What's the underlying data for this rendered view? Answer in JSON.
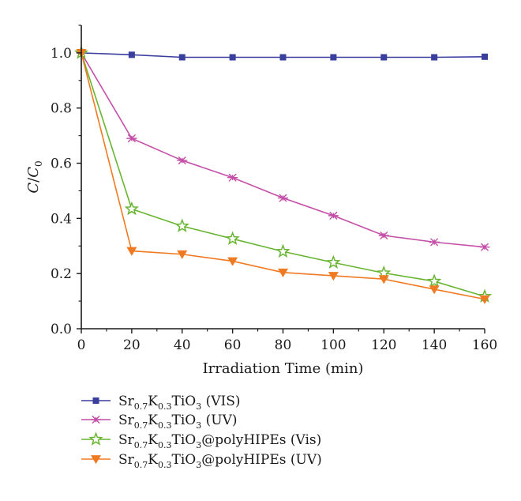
{
  "chart_data": {
    "type": "line",
    "xlabel": "Irradiation Time (min)",
    "ylabel": {
      "base": "C",
      "slash": "/",
      "base2": "C",
      "sub": "0"
    },
    "x": [
      0,
      20,
      40,
      60,
      80,
      100,
      120,
      140,
      160
    ],
    "xlim": [
      0,
      160
    ],
    "ylim": [
      0,
      1.1
    ],
    "xticks": [
      "0",
      "20",
      "40",
      "60",
      "80",
      "100",
      "120",
      "140",
      "160"
    ],
    "yticks": [
      "0.0",
      "0.2",
      "0.4",
      "0.6",
      "0.8",
      "1.0"
    ],
    "grid": false,
    "legend_position": "below",
    "series": [
      {
        "name": "Sr0.7K0.3TiO3 (VIS)",
        "name_parts": [
          [
            "Sr",
            ""
          ],
          [
            "0.7",
            "sub"
          ],
          [
            "K",
            ""
          ],
          [
            "0.3",
            "sub"
          ],
          [
            "TiO",
            ""
          ],
          [
            "3",
            "sub"
          ],
          [
            " (VIS)",
            ""
          ]
        ],
        "marker": "square",
        "color": "#3a3f9e",
        "values": [
          1.0,
          0.993,
          0.984,
          0.984,
          0.984,
          0.984,
          0.984,
          0.984,
          0.986
        ]
      },
      {
        "name": "Sr0.7K0.3TiO3 (UV)",
        "name_parts": [
          [
            "Sr",
            ""
          ],
          [
            "0.7",
            "sub"
          ],
          [
            "K",
            ""
          ],
          [
            "0.3",
            "sub"
          ],
          [
            "TiO",
            ""
          ],
          [
            "3",
            "sub"
          ],
          [
            " (UV)",
            ""
          ]
        ],
        "marker": "asterisk",
        "color": "#c44fa8",
        "values": [
          1.0,
          0.69,
          0.61,
          0.548,
          0.474,
          0.41,
          0.338,
          0.314,
          0.296
        ]
      },
      {
        "name": "Sr0.7K0.3TiO3@polyHIPEs (Vis)",
        "name_parts": [
          [
            "Sr",
            ""
          ],
          [
            "0.7",
            "sub"
          ],
          [
            "K",
            ""
          ],
          [
            "0.3",
            "sub"
          ],
          [
            "TiO",
            ""
          ],
          [
            "3",
            "sub"
          ],
          [
            "@polyHIPEs (Vis)",
            ""
          ]
        ],
        "marker": "star",
        "color": "#68b532",
        "values": [
          1.0,
          0.434,
          0.372,
          0.326,
          0.28,
          0.24,
          0.202,
          0.172,
          0.117
        ]
      },
      {
        "name": "Sr0.7K0.3TiO3@polyHIPEs (UV)",
        "name_parts": [
          [
            "Sr",
            ""
          ],
          [
            "0.7",
            "sub"
          ],
          [
            "K",
            ""
          ],
          [
            "0.3",
            "sub"
          ],
          [
            "TiO",
            ""
          ],
          [
            "3",
            "sub"
          ],
          [
            "@polyHIPEs (UV)",
            ""
          ]
        ],
        "marker": "triangle-down",
        "color": "#f07a22",
        "values": [
          1.0,
          0.282,
          0.27,
          0.245,
          0.204,
          0.192,
          0.18,
          0.143,
          0.107
        ]
      }
    ]
  }
}
